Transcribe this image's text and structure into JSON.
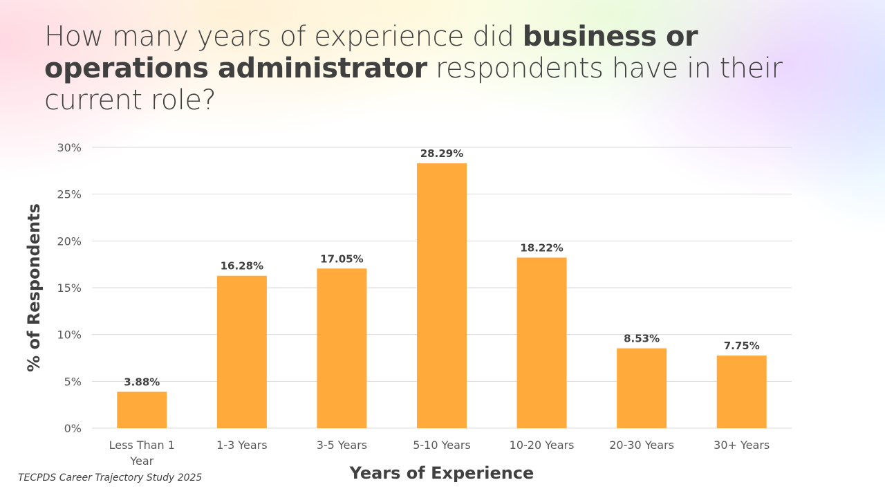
{
  "title": {
    "part1": "How many years of experience did ",
    "bold": "business or operations administrator",
    "part2": " respondents have in their current role?"
  },
  "source": "TECPDS Career Trajectory Study 2025",
  "chart_data": {
    "type": "bar",
    "title": "How many years of experience did business or operations administrator respondents have in their current role?",
    "categories": [
      "Less Than 1 Year",
      "1-3 Years",
      "3-5 Years",
      "5-10 Years",
      "10-20 Years",
      "20-30 Years",
      "30+ Years"
    ],
    "category_lines": [
      [
        "Less Than 1",
        "Year"
      ],
      [
        "1-3 Years"
      ],
      [
        "3-5 Years"
      ],
      [
        "5-10 Years"
      ],
      [
        "10-20 Years"
      ],
      [
        "20-30 Years"
      ],
      [
        "30+ Years"
      ]
    ],
    "values": [
      3.88,
      16.28,
      17.05,
      28.29,
      18.22,
      8.53,
      7.75
    ],
    "data_labels": [
      "3.88%",
      "16.28%",
      "17.05%",
      "28.29%",
      "18.22%",
      "8.53%",
      "7.75%"
    ],
    "xlabel": "Years of Experience",
    "ylabel": "% of Respondents",
    "ylim": [
      0,
      30
    ],
    "yticks": [
      0,
      5,
      10,
      15,
      20,
      25,
      30
    ],
    "ytick_labels": [
      "0%",
      "5%",
      "10%",
      "15%",
      "20%",
      "25%",
      "30%"
    ],
    "grid": true,
    "bar_color": "#FFAA3B"
  }
}
